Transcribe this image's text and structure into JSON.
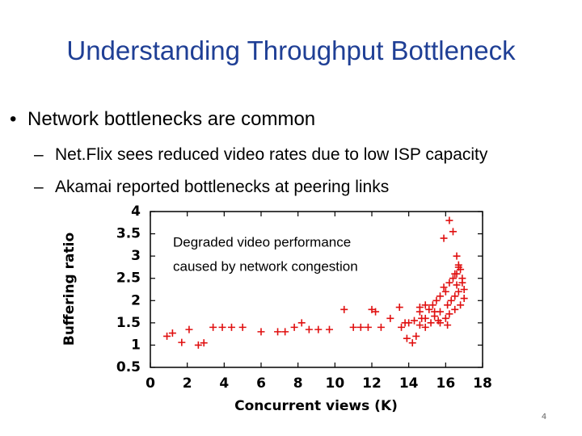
{
  "title": "Understanding Throughput Bottleneck",
  "bullets": [
    {
      "text": "Network bottlenecks are common",
      "sub": [
        "Net.Flix sees reduced video rates due to low ISP capacity",
        "Akamai reported bottlenecks at peering links"
      ]
    }
  ],
  "page_number": "4",
  "chart_data": {
    "type": "scatter",
    "x_label": "Concurrent views (K)",
    "y_label": "Buffering ratio",
    "annotation": [
      "Degraded video performance",
      "caused by network congestion"
    ],
    "xlim": [
      0,
      18
    ],
    "ylim": [
      0.5,
      4
    ],
    "xticks": [
      0,
      2,
      4,
      6,
      8,
      10,
      12,
      14,
      16,
      18
    ],
    "yticks": [
      0.5,
      1,
      1.5,
      2,
      2.5,
      3,
      3.5,
      4
    ],
    "marker": "+",
    "series": [
      {
        "color": "#e01010",
        "x": [
          0.9,
          1.2,
          1.7,
          2.1,
          2.6,
          2.9,
          3.4,
          3.9,
          4.4,
          5.0,
          6.0,
          6.9,
          7.3,
          7.8,
          8.2,
          8.6,
          9.1,
          9.7,
          10.5,
          11.0,
          11.4,
          11.8,
          12.0,
          12.2,
          12.5,
          13.0,
          13.5,
          13.6,
          16.2,
          16.4,
          15.9,
          16.6,
          16.7,
          16.5,
          13.9,
          14.2,
          14.4,
          14.0,
          14.3,
          14.6,
          14.7,
          14.9,
          14.6,
          15.1,
          15.3,
          15.5,
          15.7,
          16.0,
          15.9,
          16.2,
          16.4,
          16.6,
          16.8,
          16.9,
          16.7,
          16.5,
          16.3,
          16.1,
          15.7,
          15.4,
          15.2,
          14.9,
          15.6,
          16.0,
          16.2,
          16.5,
          16.8,
          17.0,
          17.0,
          16.9,
          16.7,
          14.6,
          14.9,
          15.7,
          16.1,
          13.8,
          15.4,
          16.6
        ],
        "values": [
          1.2,
          1.27,
          1.06,
          1.35,
          1.0,
          1.05,
          1.4,
          1.4,
          1.4,
          1.4,
          1.3,
          1.3,
          1.3,
          1.4,
          1.5,
          1.35,
          1.35,
          1.35,
          1.8,
          1.4,
          1.4,
          1.4,
          1.8,
          1.75,
          1.4,
          1.6,
          1.85,
          1.4,
          3.8,
          3.55,
          3.4,
          3.0,
          2.8,
          2.6,
          1.15,
          1.05,
          1.2,
          1.5,
          1.55,
          1.45,
          1.6,
          1.6,
          1.75,
          1.8,
          1.9,
          2.0,
          2.1,
          2.2,
          2.3,
          2.4,
          2.5,
          2.6,
          2.7,
          2.4,
          2.2,
          2.1,
          2.0,
          1.9,
          1.75,
          1.65,
          1.5,
          1.4,
          1.55,
          1.6,
          1.7,
          1.8,
          1.9,
          2.05,
          2.25,
          2.5,
          2.75,
          1.85,
          1.9,
          1.5,
          1.45,
          1.5,
          1.75,
          2.35
        ]
      }
    ]
  }
}
